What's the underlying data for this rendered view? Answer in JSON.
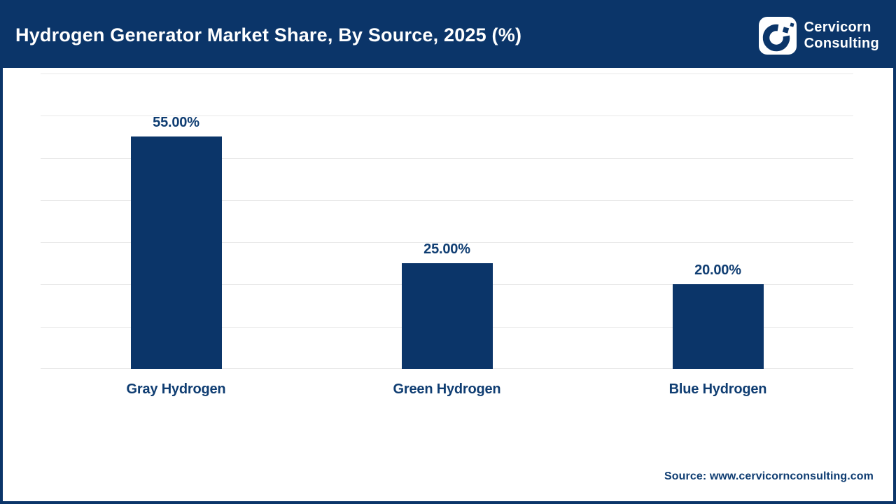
{
  "header": {
    "title": "Hydrogen Generator Market Share, By Source, 2025 (%)",
    "logo": {
      "icon": "cervicorn-c-mark",
      "line1": "Cervicorn",
      "line2": "Consulting"
    }
  },
  "chart_data": {
    "type": "bar",
    "title": "Hydrogen Generator Market Share, By Source, 2025 (%)",
    "categories": [
      "Gray Hydrogen",
      "Green Hydrogen",
      "Blue Hydrogen"
    ],
    "values": [
      55,
      25,
      20
    ],
    "value_labels": [
      "55.00%",
      "25.00%",
      "20.00%"
    ],
    "unit": "%",
    "ylim": [
      0,
      70
    ],
    "grid_step": 10,
    "grid": "horizontal-only",
    "legend": false,
    "y_axis_labels_visible": false,
    "bar_color": "#0b3569"
  },
  "footer": {
    "source_label": "Source: www.cervicornconsulting.com"
  },
  "colors": {
    "navy": "#0b3569",
    "header_bg": "#0b3569",
    "title_text": "#ffffff",
    "label_text": "#0f3d72",
    "grid_line": "#e8e8e8",
    "page_bg": "#ffffff"
  }
}
